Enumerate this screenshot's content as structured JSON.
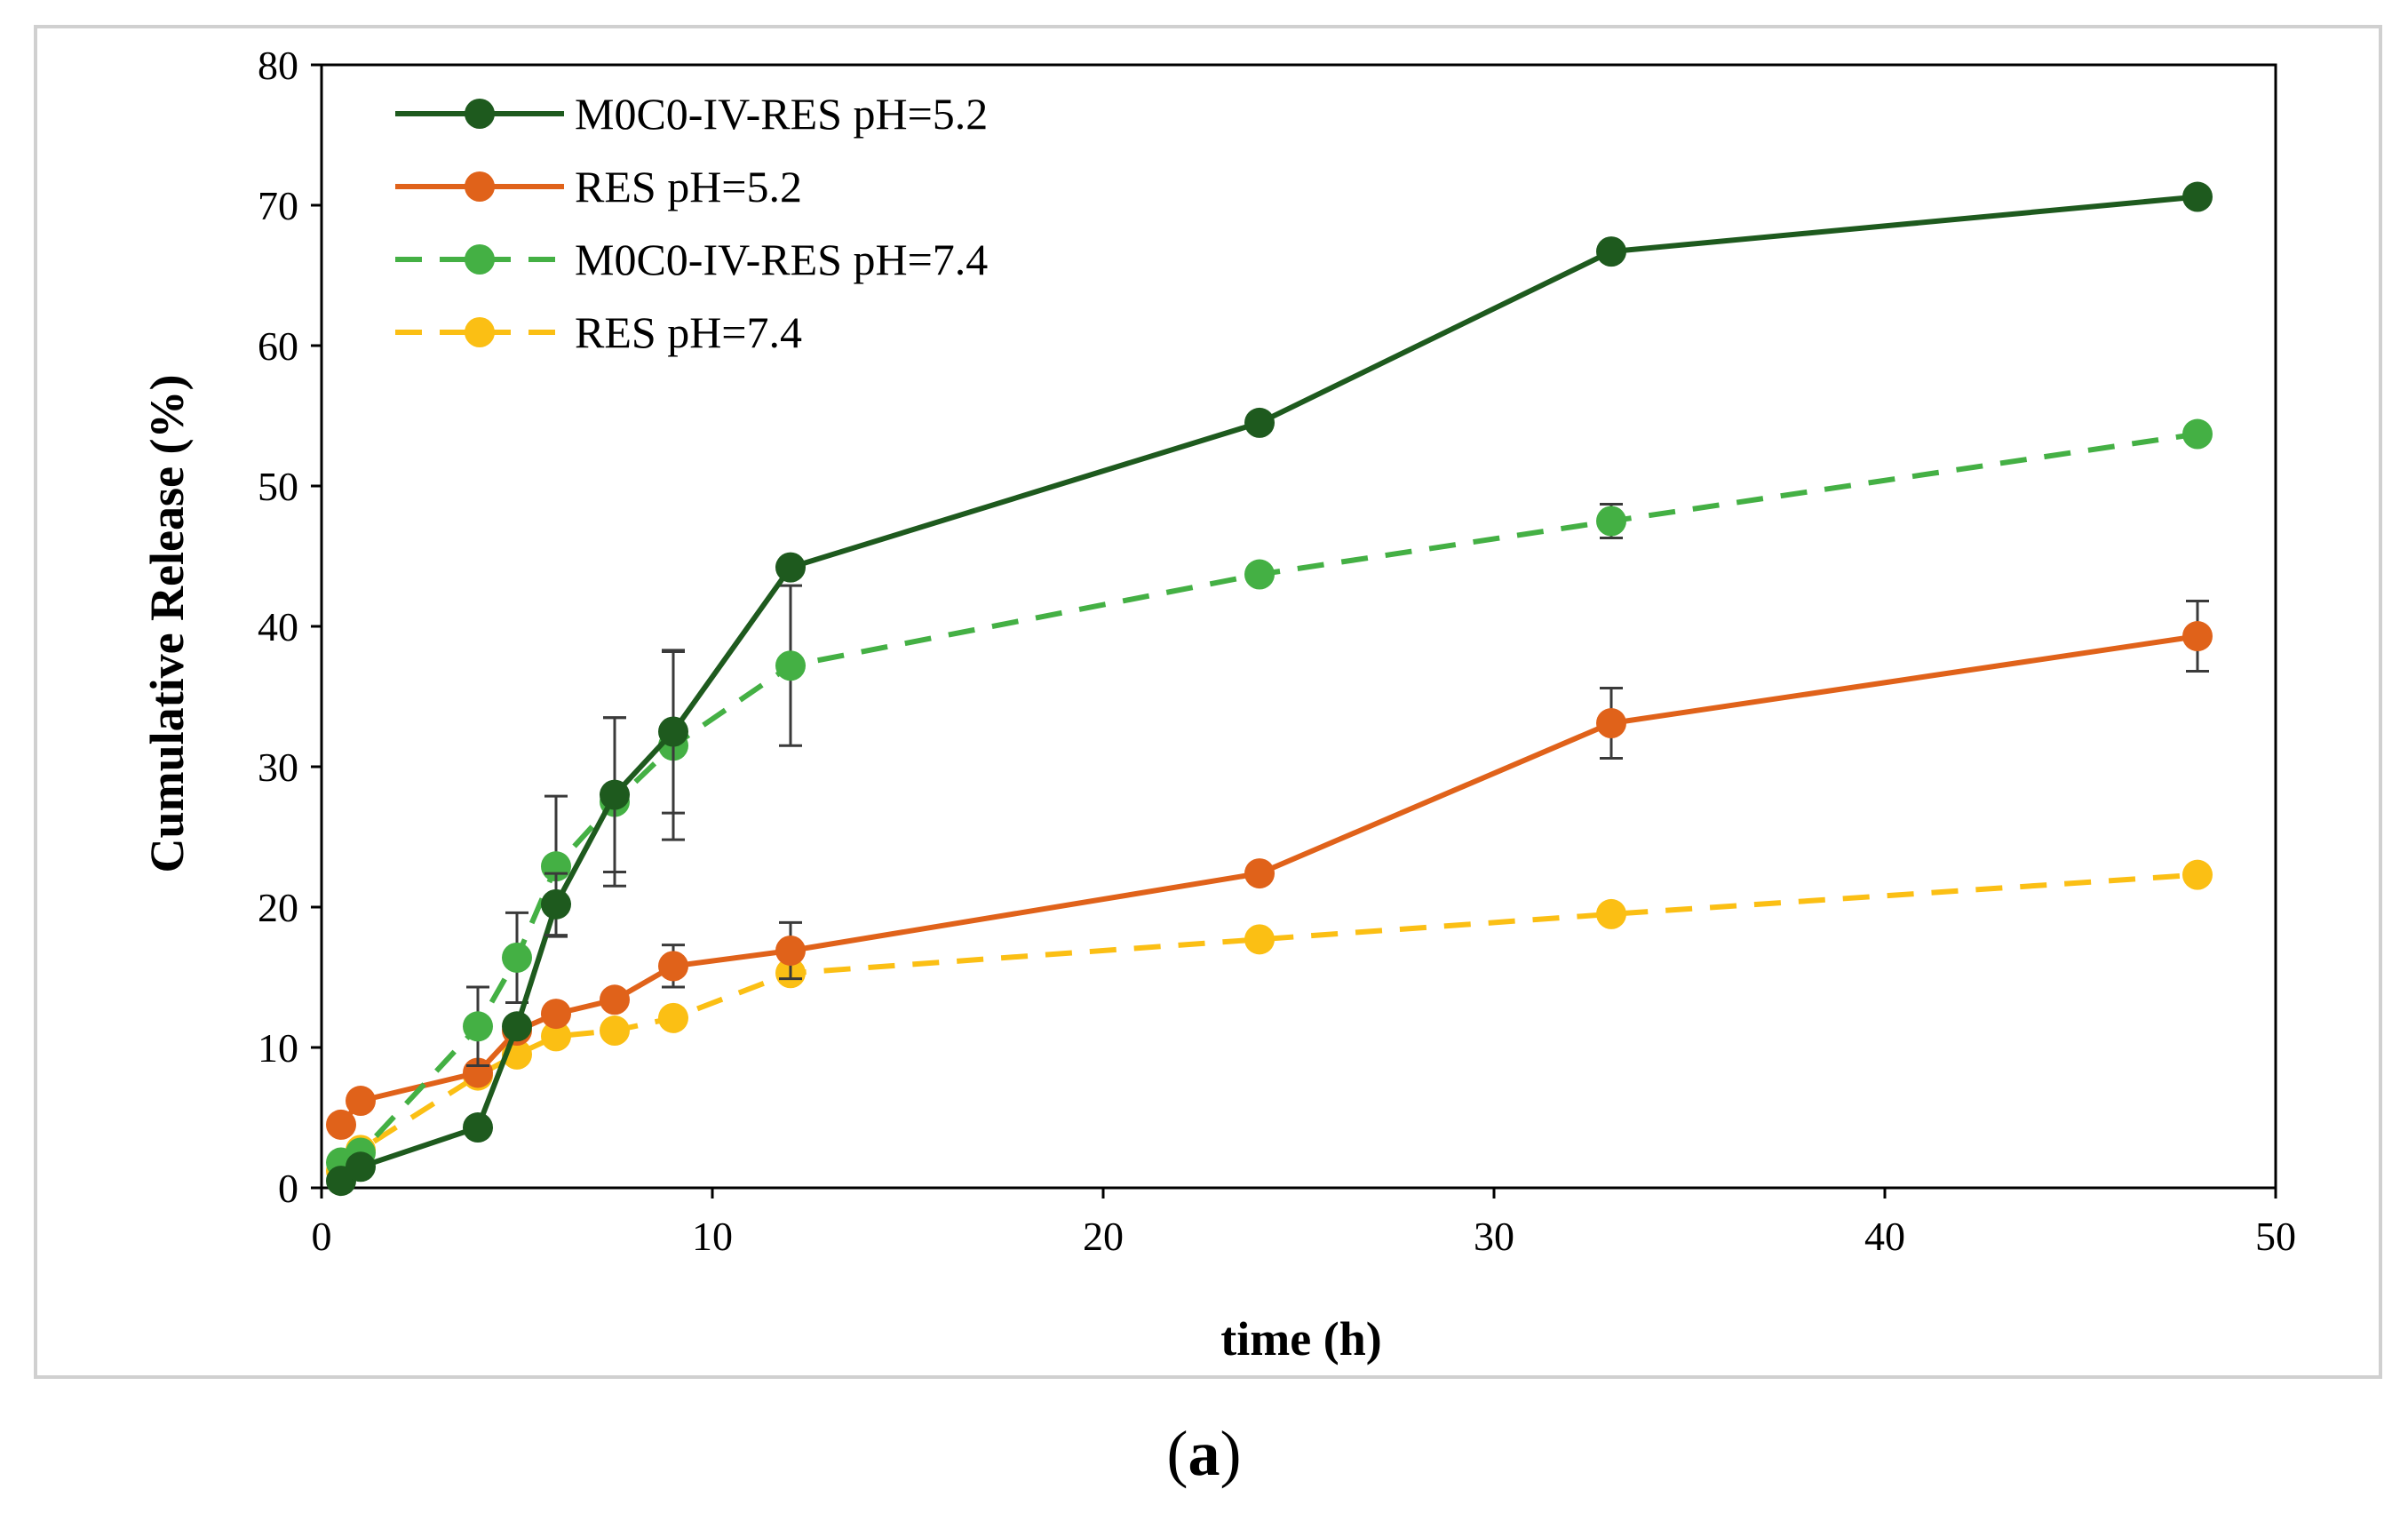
{
  "caption": {
    "open": "(",
    "letter": "a",
    "close": ")"
  },
  "chart_data": {
    "type": "line",
    "xlabel": "time (h)",
    "ylabel": "Cumulative Release (%)",
    "xlim": [
      0,
      50
    ],
    "ylim": [
      0,
      80
    ],
    "xticks": [
      0,
      10,
      20,
      30,
      40,
      50
    ],
    "yticks": [
      0,
      10,
      20,
      30,
      40,
      50,
      60,
      70,
      80
    ],
    "grid": false,
    "legend_position": "top-left",
    "x": [
      0.5,
      1,
      4,
      5,
      6,
      7.5,
      9,
      12,
      24,
      33,
      48
    ],
    "series": [
      {
        "name": "M0C0-IV-RES pH=5.2",
        "color": "#1e5a1e",
        "dashed": false,
        "values": [
          0.5,
          1.5,
          4.3,
          11.5,
          20.2,
          28.0,
          32.5,
          44.2,
          54.5,
          66.7,
          70.6
        ],
        "errors": [
          0,
          0,
          0,
          0,
          2.2,
          5.5,
          5.8,
          0,
          0,
          0,
          0
        ]
      },
      {
        "name": "RES pH=5.2",
        "color": "#e0621a",
        "dashed": false,
        "values": [
          4.5,
          6.2,
          8.2,
          11.2,
          12.4,
          13.4,
          15.8,
          16.9,
          22.4,
          33.1,
          39.3
        ],
        "errors": [
          0,
          0,
          0,
          0,
          0,
          0,
          1.5,
          2.0,
          0,
          2.5,
          2.5
        ]
      },
      {
        "name": "M0C0-IV-RES pH=7.4",
        "color": "#44b044",
        "dashed": true,
        "values": [
          1.8,
          2.5,
          11.5,
          16.4,
          22.9,
          27.5,
          31.5,
          37.2,
          43.7,
          47.5,
          53.7
        ],
        "errors": [
          0,
          0,
          2.8,
          3.2,
          5.0,
          6.0,
          6.7,
          5.7,
          0,
          1.2,
          0
        ]
      },
      {
        "name": "RES pH=7.4",
        "color": "#fbbf14",
        "dashed": true,
        "values": [
          1.2,
          2.7,
          8.0,
          9.5,
          10.8,
          11.2,
          12.1,
          15.3,
          17.7,
          19.5,
          22.3
        ],
        "errors": [
          0,
          0,
          0,
          0,
          0,
          0,
          0,
          0,
          0,
          0,
          0
        ]
      }
    ]
  }
}
